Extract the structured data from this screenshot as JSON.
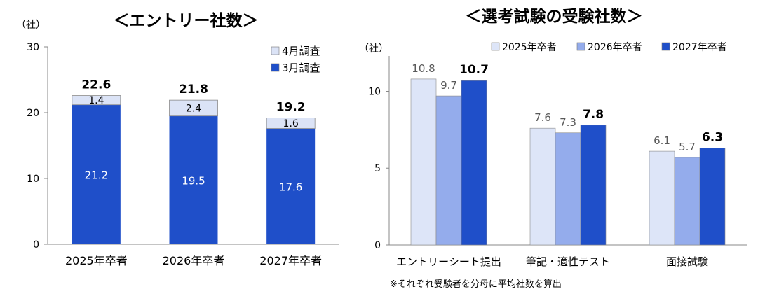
{
  "chart_data": [
    {
      "type": "bar",
      "stacked": true,
      "title": "＜エントリー社数＞",
      "unit_label": "（社）",
      "categories": [
        "2025年卒者",
        "2026年卒者",
        "2027年卒者"
      ],
      "series": [
        {
          "name": "3月調査",
          "values": [
            21.2,
            19.5,
            17.6
          ],
          "color": "#1f4fc9"
        },
        {
          "name": "4月調査",
          "values": [
            1.4,
            2.4,
            1.6
          ],
          "color": "#dbe3f6"
        }
      ],
      "totals": [
        22.6,
        21.8,
        19.2
      ],
      "value_labels": {
        "3月調査": [
          "21.2",
          "19.5",
          "17.6"
        ],
        "4月調査": [
          "1.4",
          "2.4",
          "1.6"
        ],
        "total": [
          "22.6",
          "21.8",
          "19.2"
        ]
      },
      "legend_order": [
        "4月調査",
        "3月調査"
      ],
      "yticks": [
        "0",
        "10",
        "20",
        "30"
      ],
      "ylim": [
        0,
        30
      ],
      "legend": "top-right",
      "grid": false
    },
    {
      "type": "bar",
      "title": "＜選考試験の受験社数＞",
      "unit_label": "（社）",
      "categories": [
        "エントリーシート提出",
        "筆記・適性テスト",
        "面接試験"
      ],
      "series": [
        {
          "name": "2025年卒者",
          "values": [
            10.8,
            7.6,
            6.1
          ],
          "labels": [
            "10.8",
            "7.6",
            "6.1"
          ],
          "color": "#dde5f8"
        },
        {
          "name": "2026年卒者",
          "values": [
            9.7,
            7.3,
            5.7
          ],
          "labels": [
            "9.7",
            "7.3",
            "5.7"
          ],
          "color": "#94acec"
        },
        {
          "name": "2027年卒者",
          "values": [
            10.7,
            7.8,
            6.3
          ],
          "labels": [
            "10.7",
            "7.8",
            "6.3"
          ],
          "color": "#1f4fc9"
        }
      ],
      "yticks": [
        "0",
        "5",
        "10"
      ],
      "ylim": [
        0,
        12.3
      ],
      "legend": "top",
      "grid": false,
      "note": "※それぞれ受験者を分母に平均社数を算出"
    }
  ]
}
